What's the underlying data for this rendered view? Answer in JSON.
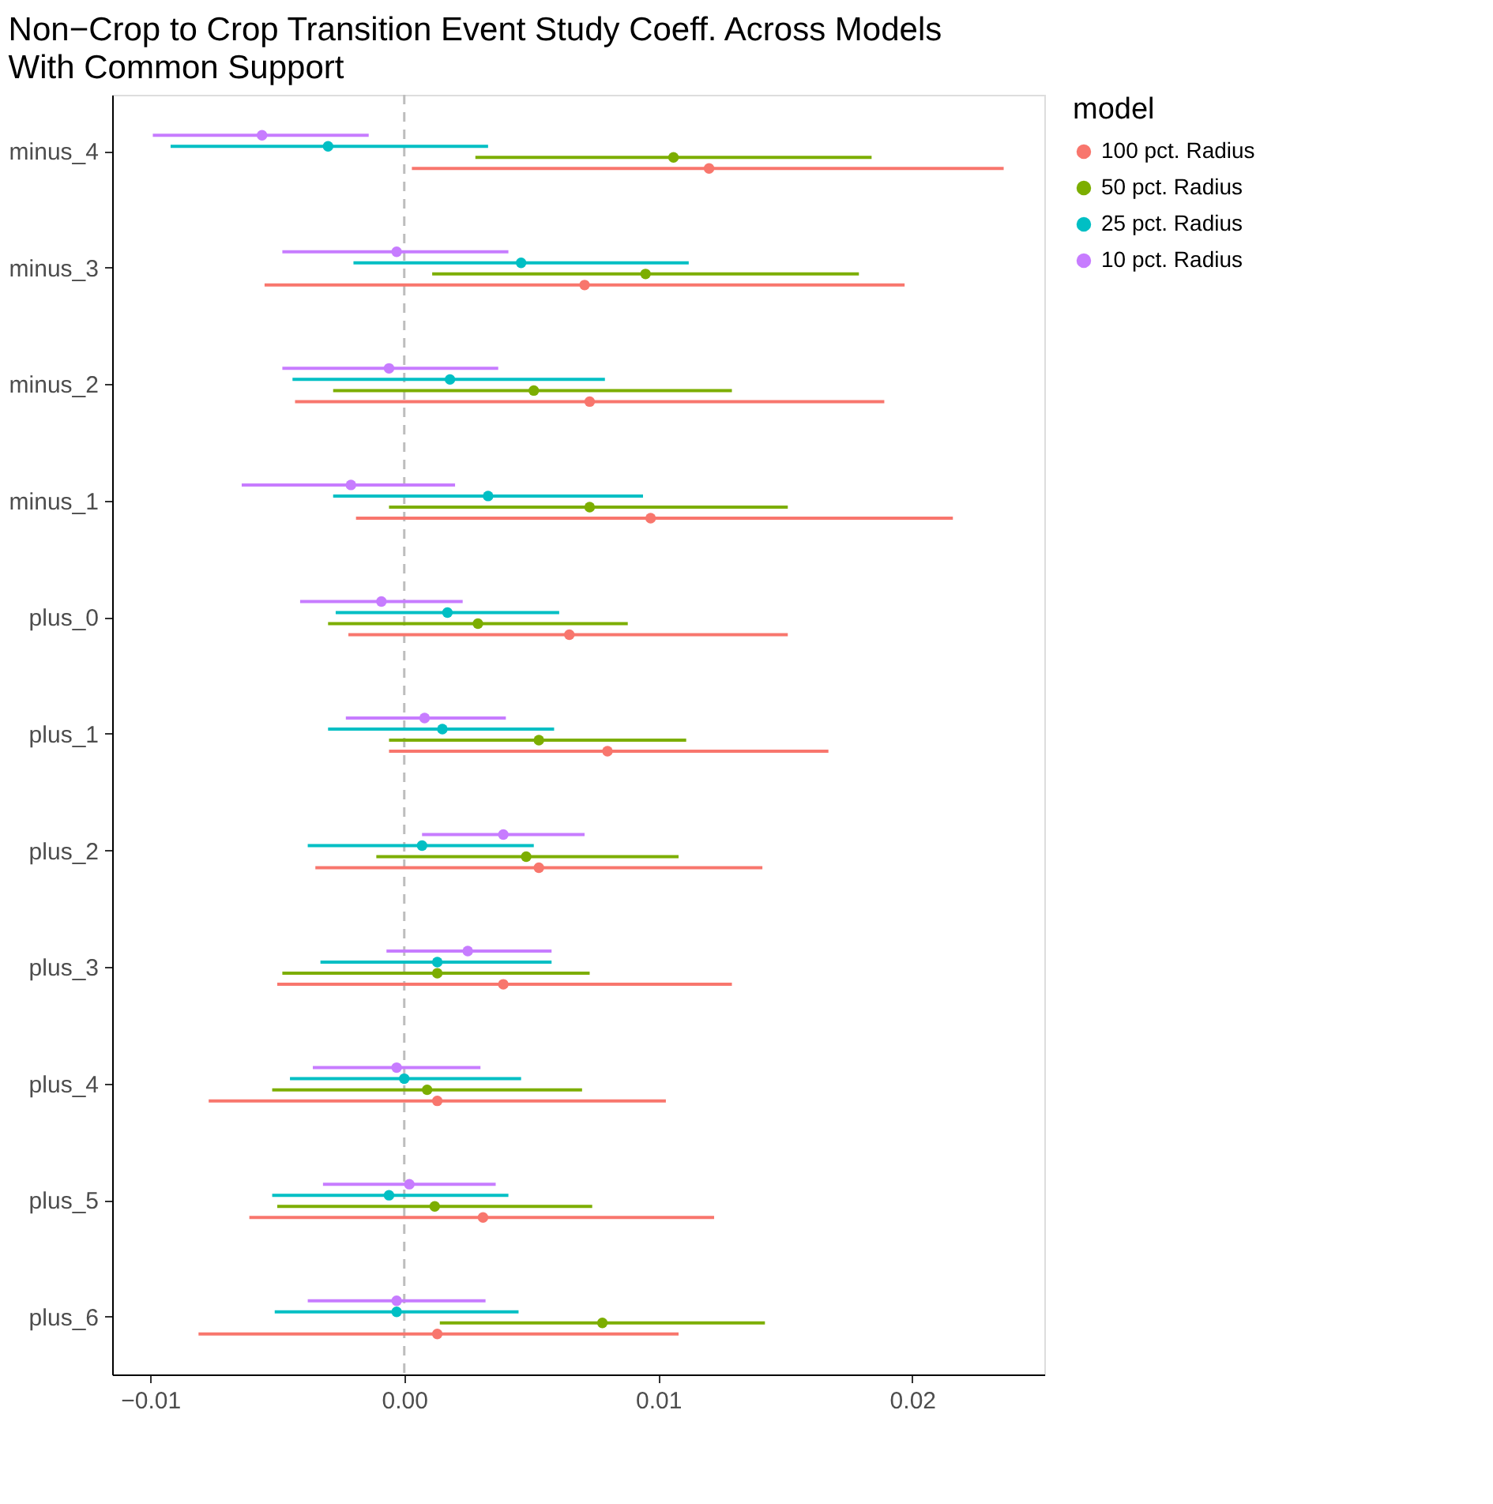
{
  "chart_data": {
    "type": "scatter",
    "orientation": "horizontal",
    "title": "Non−Crop to Crop Transition Event Study Coeff. Across Models\n With Common Support",
    "legend_title": "model",
    "legend": "right",
    "grid": false,
    "marker": "circle",
    "categories": [
      "minus_4",
      "minus_3",
      "minus_2",
      "minus_1",
      "plus_0",
      "plus_1",
      "plus_2",
      "plus_3",
      "plus_4",
      "plus_5",
      "plus_6"
    ],
    "xlim": [
      -0.0115,
      0.0252
    ],
    "xticks": [
      {
        "value": -0.01,
        "label": "−0.01"
      },
      {
        "value": 0,
        "label": "0.00"
      },
      {
        "value": 0.01,
        "label": "0.01"
      },
      {
        "value": 0.02,
        "label": "0.02"
      }
    ],
    "ref_lines": [
      {
        "axis": "x",
        "value": 0,
        "color": "#bdbdbd",
        "line_style": "dashed"
      }
    ],
    "series": [
      {
        "name": "100 pct. Radius",
        "color": "#f8766d",
        "values": [
          0.012,
          0.0071,
          0.0073,
          0.0097,
          0.0065,
          0.008,
          0.0053,
          0.0039,
          0.0013,
          0.0031,
          0.0013
        ],
        "errors": [
          [
            0.0003,
            0.0236
          ],
          [
            -0.0055,
            0.0197
          ],
          [
            -0.0043,
            0.0189
          ],
          [
            -0.0019,
            0.0216
          ],
          [
            -0.0022,
            0.0151
          ],
          [
            -0.0006,
            0.0167
          ],
          [
            -0.0035,
            0.0141
          ],
          [
            -0.005,
            0.0129
          ],
          [
            -0.0077,
            0.0103
          ],
          [
            -0.0061,
            0.0122
          ],
          [
            -0.0081,
            0.0108
          ]
        ]
      },
      {
        "name": "50 pct. Radius",
        "color": "#7cae00",
        "values": [
          0.0106,
          0.0095,
          0.0051,
          0.0073,
          0.0029,
          0.0053,
          0.0048,
          0.0013,
          0.0009,
          0.0012,
          0.0078
        ],
        "errors": [
          [
            0.0028,
            0.0184
          ],
          [
            0.0011,
            0.0179
          ],
          [
            -0.0028,
            0.0129
          ],
          [
            -0.0006,
            0.0151
          ],
          [
            -0.003,
            0.0088
          ],
          [
            -0.0006,
            0.0111
          ],
          [
            -0.0011,
            0.0108
          ],
          [
            -0.0048,
            0.0073
          ],
          [
            -0.0052,
            0.007
          ],
          [
            -0.005,
            0.0074
          ],
          [
            0.0014,
            0.0142
          ]
        ]
      },
      {
        "name": "25 pct. Radius",
        "color": "#00bfc4",
        "values": [
          -0.003,
          0.0046,
          0.0018,
          0.0033,
          0.0017,
          0.0015,
          0.0007,
          0.0013,
          0.0,
          -0.0006,
          -0.0003
        ],
        "errors": [
          [
            -0.0092,
            0.0033
          ],
          [
            -0.002,
            0.0112
          ],
          [
            -0.0044,
            0.0079
          ],
          [
            -0.0028,
            0.0094
          ],
          [
            -0.0027,
            0.0061
          ],
          [
            -0.003,
            0.0059
          ],
          [
            -0.0038,
            0.0051
          ],
          [
            -0.0033,
            0.0058
          ],
          [
            -0.0045,
            0.0046
          ],
          [
            -0.0052,
            0.0041
          ],
          [
            -0.0051,
            0.0045
          ]
        ]
      },
      {
        "name": "10 pct. Radius",
        "color": "#c77cff",
        "values": [
          -0.0056,
          -0.0003,
          -0.0006,
          -0.0021,
          -0.0009,
          0.0008,
          0.0039,
          0.0025,
          -0.0003,
          0.0002,
          -0.0003
        ],
        "errors": [
          [
            -0.0099,
            -0.0014
          ],
          [
            -0.0048,
            0.0041
          ],
          [
            -0.0048,
            0.0037
          ],
          [
            -0.0064,
            0.002
          ],
          [
            -0.0041,
            0.0023
          ],
          [
            -0.0023,
            0.004
          ],
          [
            0.0007,
            0.0071
          ],
          [
            -0.0007,
            0.0058
          ],
          [
            -0.0036,
            0.003
          ],
          [
            -0.0032,
            0.0036
          ],
          [
            -0.0038,
            0.0032
          ]
        ]
      }
    ]
  }
}
